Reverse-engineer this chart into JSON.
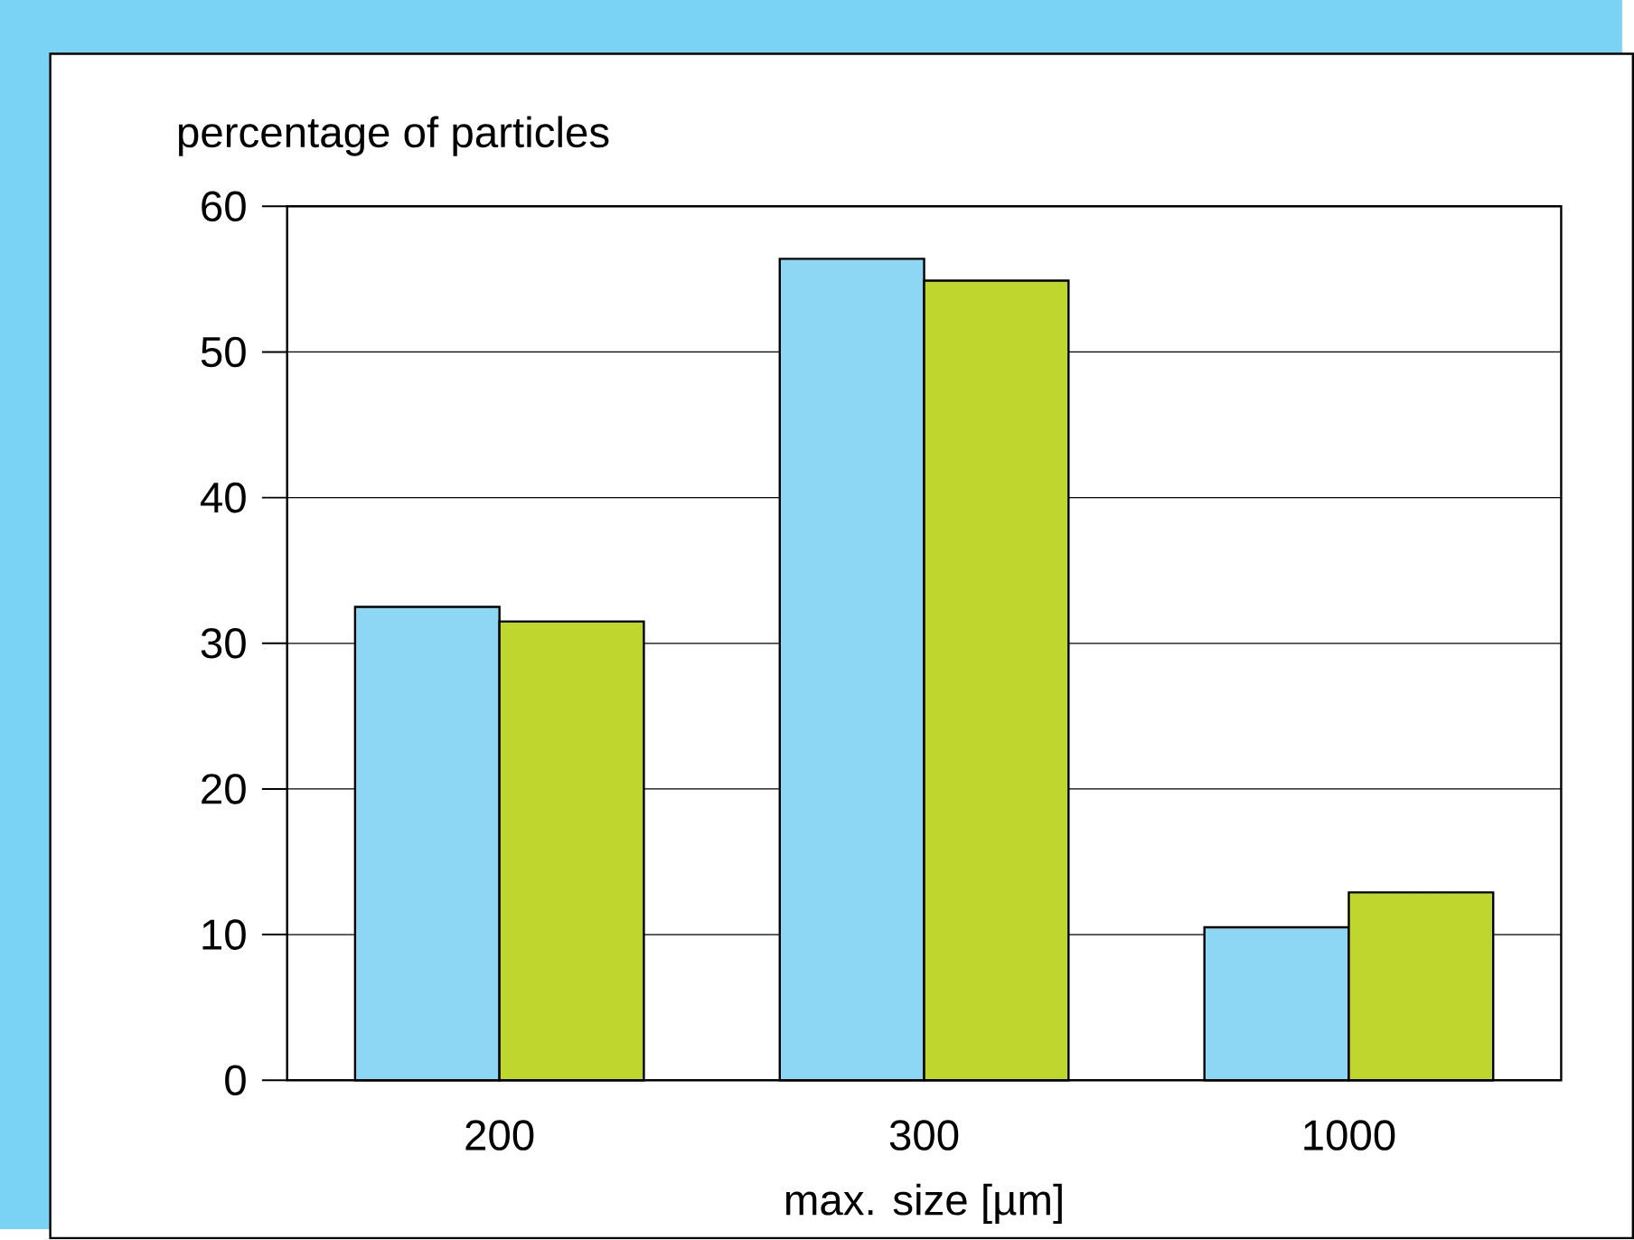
{
  "chart_data": {
    "type": "bar",
    "xlabel": "max. size [µm]",
    "ylabel": "percentage of particles",
    "categories": [
      "200",
      "300",
      "1000"
    ],
    "series": [
      {
        "color": "#8dd7f5",
        "values": [
          32.5,
          56.4,
          10.5
        ]
      },
      {
        "color": "#bfd62e",
        "values": [
          31.5,
          54.9,
          12.9
        ]
      }
    ],
    "ylim": [
      0,
      60
    ],
    "yticks": [
      0,
      10,
      20,
      30,
      40,
      50,
      60
    ],
    "grid": "y"
  }
}
